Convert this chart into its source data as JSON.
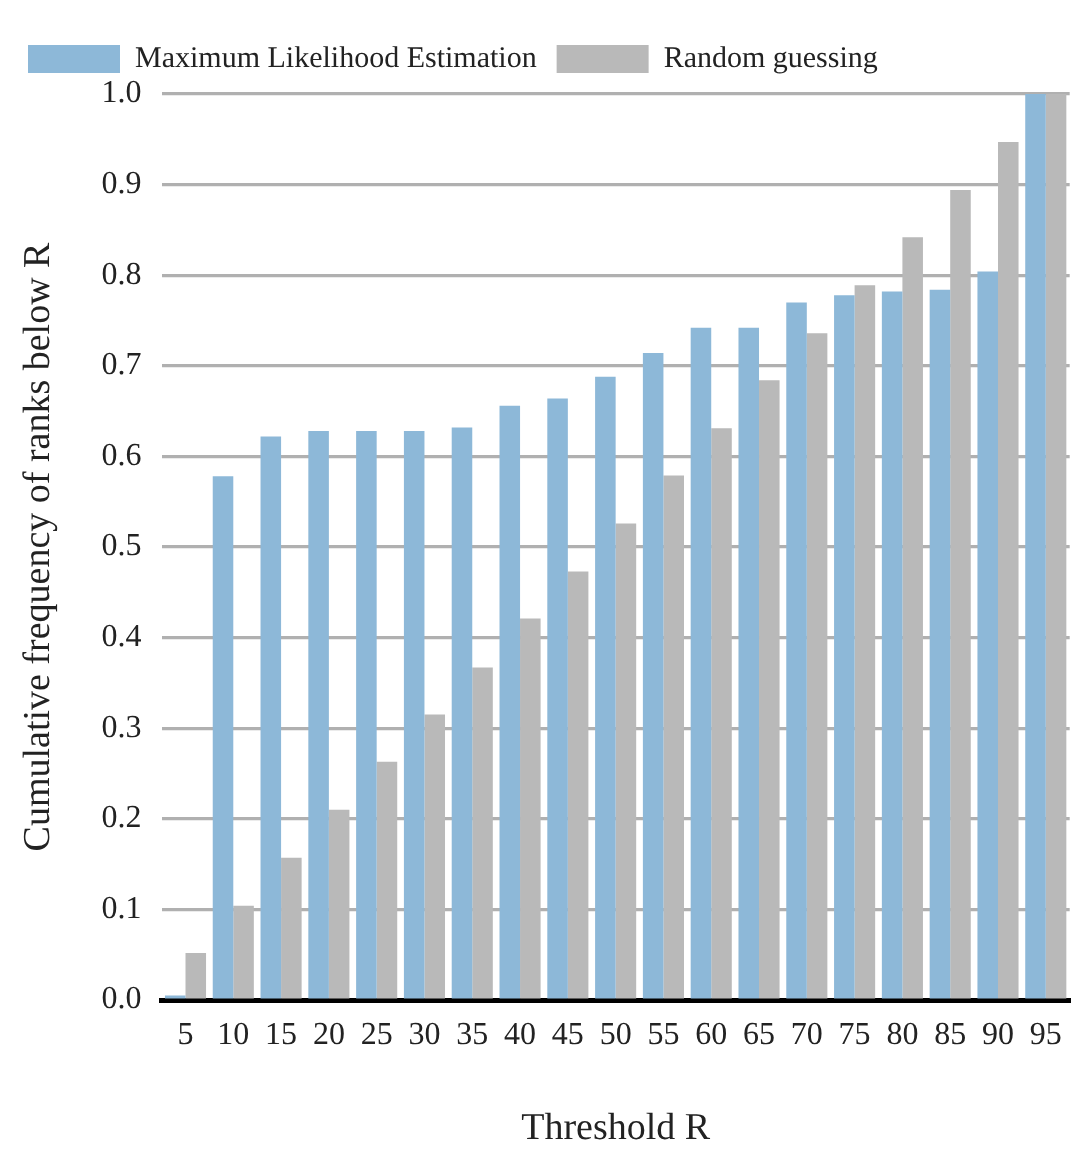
{
  "chart_data": {
    "type": "bar",
    "xlabel": "Threshold R",
    "ylabel": "Cumulative frequency of ranks below R",
    "categories": [
      "5",
      "10",
      "15",
      "20",
      "25",
      "30",
      "35",
      "40",
      "45",
      "50",
      "55",
      "60",
      "65",
      "70",
      "75",
      "80",
      "85",
      "90",
      "95"
    ],
    "series": [
      {
        "name": "Maximum Likelihood Estimation",
        "color": "#8db8d8",
        "values": [
          0.005,
          0.578,
          0.622,
          0.628,
          0.628,
          0.628,
          0.632,
          0.656,
          0.664,
          0.688,
          0.714,
          0.742,
          0.742,
          0.77,
          0.778,
          0.782,
          0.784,
          0.804,
          1.0
        ]
      },
      {
        "name": "Random guessing",
        "color": "#b9b9b9",
        "values": [
          0.052,
          0.104,
          0.157,
          0.21,
          0.263,
          0.315,
          0.367,
          0.421,
          0.473,
          0.526,
          0.579,
          0.631,
          0.684,
          0.736,
          0.789,
          0.842,
          0.894,
          0.947,
          1.0
        ]
      }
    ],
    "ylim": [
      0,
      1
    ],
    "yticks": [
      {
        "value": 0,
        "label": "0.0"
      },
      {
        "value": 0.1,
        "label": "0.1"
      },
      {
        "value": 0.2,
        "label": "0.2"
      },
      {
        "value": 0.3,
        "label": "0.3"
      },
      {
        "value": 0.4,
        "label": "0.4"
      },
      {
        "value": 0.5,
        "label": "0.5"
      },
      {
        "value": 0.6,
        "label": "0.6"
      },
      {
        "value": 0.7,
        "label": "0.7"
      },
      {
        "value": 0.8,
        "label": "0.8"
      },
      {
        "value": 0.9,
        "label": "0.9"
      },
      {
        "value": 1,
        "label": "1.0"
      }
    ],
    "grid": "y",
    "legend": "top left"
  }
}
